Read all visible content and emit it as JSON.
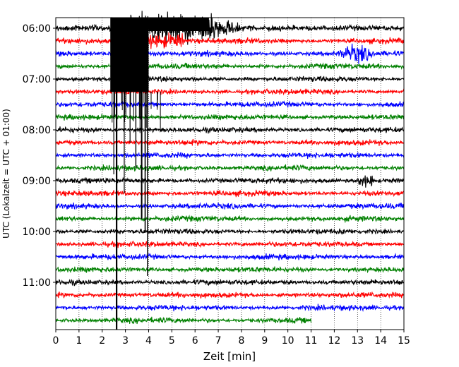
{
  "chart_data": {
    "type": "line",
    "title": "",
    "xlabel": "Zeit  [min]",
    "ylabel": "UTC (Lokalzeit = UTC + 01:00)",
    "xlim": [
      0,
      15
    ],
    "x_ticks": [
      0,
      1,
      2,
      3,
      4,
      5,
      6,
      7,
      8,
      9,
      10,
      11,
      12,
      13,
      14,
      15
    ],
    "y_tick_labels": [
      "06:00",
      "07:00",
      "08:00",
      "09:00",
      "10:00",
      "11:00"
    ],
    "trace_interval_min": 15,
    "first_trace": "06:00",
    "last_trace": "11:45",
    "trace_colors": [
      "#000000",
      "#ff0000",
      "#0000ff",
      "#008000"
    ],
    "last_trace_end_min": 11.0,
    "grid": "vertical dotted",
    "events": [
      {
        "label": "main-earthquake",
        "onset_min": 2.4,
        "saturated_until_trace": "06:45",
        "visible_through_trace": "11:45"
      },
      {
        "label": "local-burst-1",
        "trace": "06:30",
        "center_min": 12.6
      },
      {
        "label": "local-burst-2",
        "trace": "09:00",
        "center_min": 13.3
      }
    ]
  }
}
